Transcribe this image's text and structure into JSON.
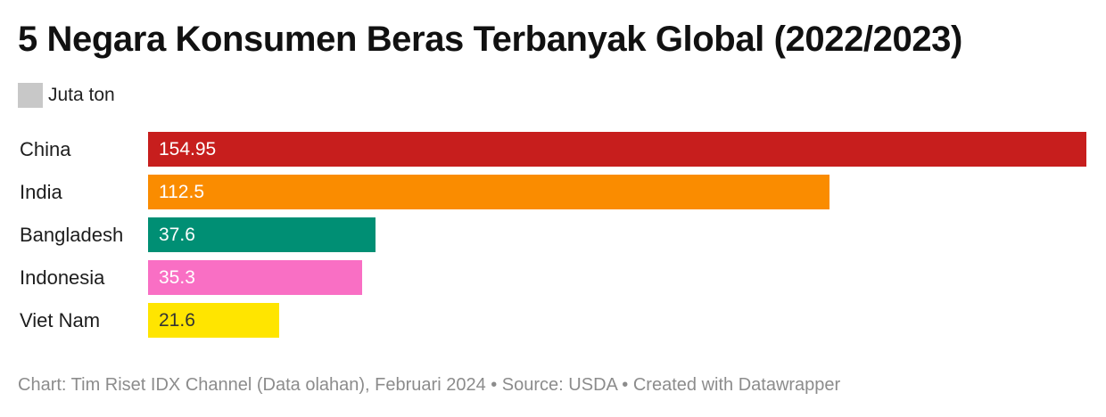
{
  "title": "5 Negara Konsumen Beras Terbanyak Global (2022/2023)",
  "legend": {
    "label": "Juta ton",
    "color": "#c8c8c8"
  },
  "chart_data": {
    "type": "bar",
    "orientation": "horizontal",
    "title": "5 Negara Konsumen Beras Terbanyak Global (2022/2023)",
    "series_name": "Juta ton",
    "categories": [
      "China",
      "India",
      "Bangladesh",
      "Indonesia",
      "Viet Nam"
    ],
    "values": [
      154.95,
      112.5,
      37.6,
      35.3,
      21.6
    ],
    "value_labels": [
      "154.95",
      "112.5",
      "37.6",
      "35.3",
      "21.6"
    ],
    "colors": [
      "#c71e1d",
      "#fa8c00",
      "#008f74",
      "#f96fc4",
      "#ffe500"
    ],
    "label_colors": [
      "#ffffff",
      "#ffffff",
      "#ffffff",
      "#ffffff",
      "#333333"
    ],
    "xlim": [
      0,
      154.95
    ],
    "grid": false,
    "legend_position": "top-left"
  },
  "footer": {
    "text": "Chart: Tim Riset IDX Channel (Data olahan), Februari 2024 • Source: USDA • Created with Datawrapper"
  }
}
